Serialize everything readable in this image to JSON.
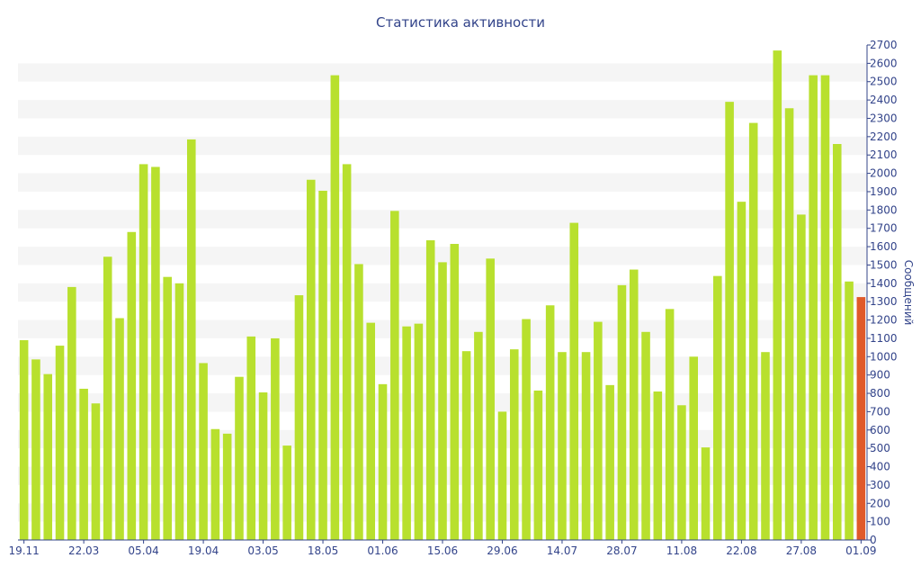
{
  "chart_data": {
    "type": "bar",
    "title": "Статистика активности",
    "ylabel": "Сообщений",
    "ylim": [
      0,
      2700
    ],
    "ytick_step": 100,
    "grid": "alternating horizontal bands",
    "colors": {
      "bar": "#b8e02e",
      "highlight": "#e05a2a",
      "band": "#f5f5f5",
      "axis": "#33448a"
    },
    "x_tick_labels": [
      "19.11",
      "22.03",
      "05.04",
      "19.04",
      "03.05",
      "18.05",
      "01.06",
      "15.06",
      "29.06",
      "14.07",
      "28.07",
      "11.08",
      "22.08",
      "27.08",
      "01.09"
    ],
    "x_tick_bar_index": [
      0,
      5,
      10,
      15,
      20,
      25,
      30,
      35,
      40,
      45,
      50,
      55,
      60,
      65,
      70
    ],
    "values": [
      1090,
      985,
      905,
      1060,
      1380,
      825,
      745,
      1545,
      1210,
      1680,
      2050,
      2035,
      1435,
      1400,
      2185,
      965,
      605,
      580,
      890,
      1110,
      805,
      1100,
      515,
      1335,
      1965,
      1905,
      2535,
      2050,
      1505,
      1185,
      850,
      1795,
      1165,
      1180,
      1635,
      1515,
      1615,
      1030,
      1135,
      1535,
      700,
      1040,
      1205,
      815,
      1280,
      1025,
      1730,
      1025,
      1190,
      845,
      1390,
      1475,
      1135,
      810,
      1260,
      735,
      1000,
      505,
      1440,
      2390,
      1845,
      2275,
      1025,
      2670,
      2355,
      1775,
      2535,
      2535,
      2160,
      1410,
      1325
    ],
    "highlight_index": 70
  }
}
